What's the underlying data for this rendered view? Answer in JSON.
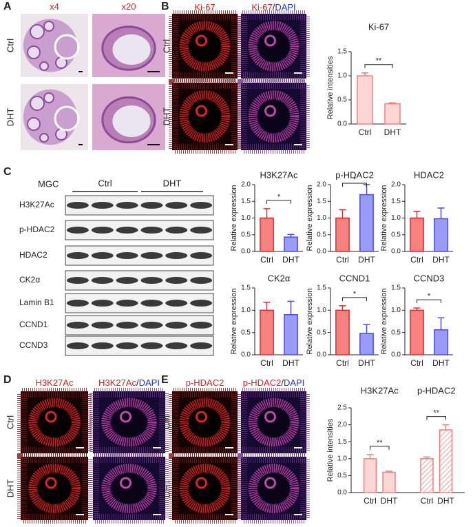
{
  "panel_labels": [
    "A",
    "B",
    "C",
    "D",
    "E"
  ],
  "panel_a": {
    "columns": [
      [
        "x4"
      ],
      [
        "x20"
      ]
    ],
    "rows": [
      "Ctrl",
      "DHT"
    ]
  },
  "panel_b": {
    "columns": [
      [
        "Ki-67"
      ],
      [
        "Ki-67",
        "/",
        "DAPI"
      ]
    ],
    "rows": [
      "Ctrl",
      "DHT"
    ]
  },
  "panel_c": {
    "cell_line": "MGC",
    "groups": [
      "Ctrl",
      "DHT"
    ],
    "proteins": [
      "H3K27Ac",
      "p-HDAC2",
      "HDAC2",
      "CK2α",
      "Lamin B1",
      "CCND1",
      "CCND3"
    ]
  },
  "panel_d": {
    "columns": [
      [
        "H3K27Ac"
      ],
      [
        "H3K27Ac",
        "/",
        "DAPI"
      ]
    ],
    "rows": [
      "Ctrl",
      "DHT"
    ]
  },
  "panel_e": {
    "columns": [
      [
        "p-HDAC2"
      ],
      [
        "p-HDAC2",
        "/",
        "DAPI"
      ]
    ],
    "rows": [
      "Ctrl",
      "DHT"
    ]
  },
  "chart_data": [
    {
      "type": "bar",
      "title": "Ki-67",
      "ylabel": "Relative intensities",
      "categories": [
        "Ctrl",
        "DHT"
      ],
      "values": [
        1.0,
        0.42
      ],
      "errors": [
        0.06,
        0.02
      ],
      "colors": [
        "#ffd6d6",
        "#ffd6d6"
      ],
      "edge_colors": [
        "#f08080",
        "#f08080"
      ],
      "ylim": [
        0,
        1.5
      ],
      "yticks": [
        {
          "value": 0,
          "label": "0.0"
        },
        {
          "value": 0.5,
          "label": "0.5"
        },
        {
          "value": 1,
          "label": "1.0"
        },
        {
          "value": 1.5,
          "label": "1.5"
        }
      ],
      "significance": "**"
    },
    {
      "type": "bar",
      "title": "H3K27Ac",
      "ylabel": "Relative expression",
      "categories": [
        "Ctrl",
        "DHT"
      ],
      "values": [
        1.0,
        0.43
      ],
      "errors": [
        0.28,
        0.08
      ],
      "colors": [
        "#f8827f",
        "#9a9cf7"
      ],
      "edge_colors": [
        "#e8262a",
        "#4a4af0"
      ],
      "ylim": [
        0,
        2
      ],
      "yticks": [
        {
          "value": 0,
          "label": "0.0"
        },
        {
          "value": 0.5,
          "label": "0.5"
        },
        {
          "value": 1,
          "label": "1.0"
        },
        {
          "value": 1.5,
          "label": "1.5"
        },
        {
          "value": 2,
          "label": "2.0"
        }
      ],
      "significance": "*"
    },
    {
      "type": "bar",
      "title": "p-HDAC2",
      "ylabel": "Relative expression",
      "categories": [
        "Ctrl",
        "DHT"
      ],
      "values": [
        1.0,
        1.7
      ],
      "errors": [
        0.25,
        0.3
      ],
      "colors": [
        "#f8827f",
        "#9a9cf7"
      ],
      "edge_colors": [
        "#e8262a",
        "#4a4af0"
      ],
      "ylim": [
        0,
        2
      ],
      "yticks": [
        {
          "value": 0,
          "label": "0.0"
        },
        {
          "value": 0.5,
          "label": "0.5"
        },
        {
          "value": 1,
          "label": "1.0"
        },
        {
          "value": 1.5,
          "label": "1.5"
        },
        {
          "value": 2,
          "label": "2.0"
        }
      ],
      "significance": "*"
    },
    {
      "type": "bar",
      "title": "HDAC2",
      "ylabel": "Relative expression",
      "categories": [
        "Ctrl",
        "DHT"
      ],
      "values": [
        1.0,
        0.98
      ],
      "errors": [
        0.2,
        0.32
      ],
      "colors": [
        "#f8827f",
        "#9a9cf7"
      ],
      "edge_colors": [
        "#e8262a",
        "#4a4af0"
      ],
      "ylim": [
        0,
        2
      ],
      "yticks": [
        {
          "value": 0,
          "label": "0.0"
        },
        {
          "value": 0.5,
          "label": "0.5"
        },
        {
          "value": 1,
          "label": "1.0"
        },
        {
          "value": 1.5,
          "label": "1.5"
        },
        {
          "value": 2,
          "label": "2.0"
        }
      ]
    },
    {
      "type": "bar",
      "title": "CK2α",
      "ylabel": "Relative expression",
      "categories": [
        "Ctrl",
        "DHT"
      ],
      "values": [
        1.0,
        0.9
      ],
      "errors": [
        0.18,
        0.3
      ],
      "colors": [
        "#f8827f",
        "#9a9cf7"
      ],
      "edge_colors": [
        "#e8262a",
        "#4a4af0"
      ],
      "ylim": [
        0,
        1.5
      ],
      "yticks": [
        {
          "value": 0,
          "label": "0.0"
        },
        {
          "value": 0.5,
          "label": "0.5"
        },
        {
          "value": 1,
          "label": "1.0"
        },
        {
          "value": 1.5,
          "label": "1.5"
        }
      ]
    },
    {
      "type": "bar",
      "title": "CCND1",
      "ylabel": "Relative expression",
      "categories": [
        "Ctrl",
        "DHT"
      ],
      "values": [
        1.0,
        0.48
      ],
      "errors": [
        0.1,
        0.2
      ],
      "colors": [
        "#f8827f",
        "#9a9cf7"
      ],
      "edge_colors": [
        "#e8262a",
        "#4a4af0"
      ],
      "ylim": [
        0,
        1.5
      ],
      "yticks": [
        {
          "value": 0,
          "label": "0.0"
        },
        {
          "value": 0.5,
          "label": "0.5"
        },
        {
          "value": 1,
          "label": "1.0"
        },
        {
          "value": 1.5,
          "label": "1.5"
        }
      ],
      "significance": "*"
    },
    {
      "type": "bar",
      "title": "CCND3",
      "ylabel": "Relative expression",
      "categories": [
        "Ctrl",
        "DHT"
      ],
      "values": [
        1.0,
        0.56
      ],
      "errors": [
        0.05,
        0.27
      ],
      "colors": [
        "#f8827f",
        "#9a9cf7"
      ],
      "edge_colors": [
        "#e8262a",
        "#4a4af0"
      ],
      "ylim": [
        0,
        1.5
      ],
      "yticks": [
        {
          "value": 0,
          "label": "0.0"
        },
        {
          "value": 0.5,
          "label": "0.5"
        },
        {
          "value": 1,
          "label": "1.0"
        },
        {
          "value": 1.5,
          "label": "1.5"
        }
      ],
      "significance": "*"
    },
    {
      "type": "grouped_bar",
      "ylabel": "Relative intensities",
      "ylim": [
        0,
        2.5
      ],
      "yticks": [
        {
          "value": 0,
          "label": "0.0"
        },
        {
          "value": 0.5,
          "label": "0.5"
        },
        {
          "value": 1,
          "label": "1.0"
        },
        {
          "value": 1.5,
          "label": "1.5"
        },
        {
          "value": 2,
          "label": "2.0"
        },
        {
          "value": 2.5,
          "label": "2.5"
        }
      ],
      "groups": [
        {
          "title": "H3K27Ac",
          "categories": [
            "Ctrl",
            "DHT"
          ],
          "values": [
            1.0,
            0.6
          ],
          "errors": [
            0.12,
            0.03
          ],
          "color": "#ffd6d6",
          "edge_color": "#f08080",
          "hatched": false,
          "significance": "**"
        },
        {
          "title": "p-HDAC2",
          "categories": [
            "Ctrl",
            "DHT"
          ],
          "values": [
            1.0,
            1.85
          ],
          "errors": [
            0.05,
            0.15
          ],
          "color": "#ffffff",
          "edge_color": "#f08080",
          "hatched": true,
          "significance": "**"
        }
      ]
    }
  ]
}
